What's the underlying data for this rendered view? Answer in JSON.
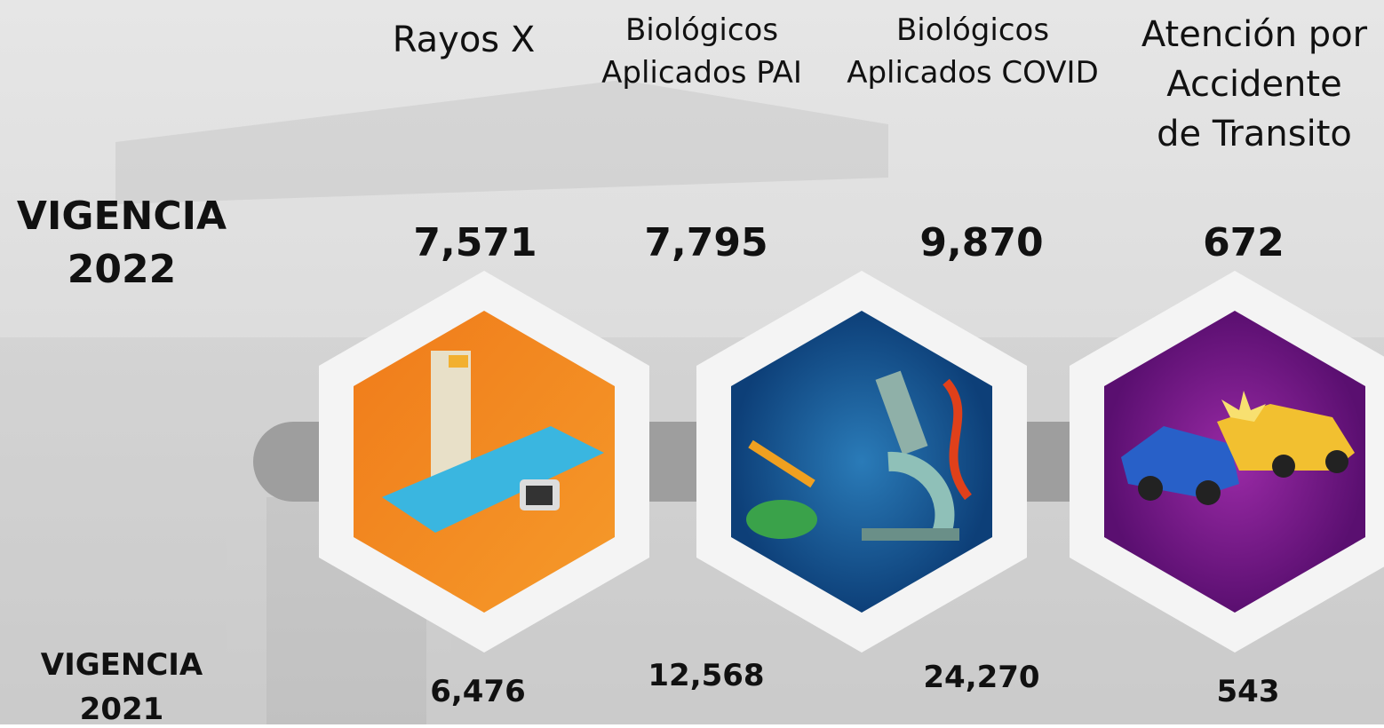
{
  "row_2022": {
    "label_lines": [
      "VIGENCIA",
      "2022"
    ],
    "values": [
      "7,571",
      "7,795",
      "9,870",
      "672"
    ]
  },
  "row_2021": {
    "label_lines": [
      "VIGENCIA",
      "2021"
    ],
    "values": [
      "6,476",
      "12,568",
      "24,270",
      "543"
    ]
  },
  "categories": [
    {
      "lines": [
        "Rayos X"
      ]
    },
    {
      "lines": [
        "Biológicos",
        "Aplicados PAI"
      ]
    },
    {
      "lines": [
        "Biológicos",
        "Aplicados COVID"
      ]
    },
    {
      "lines": [
        "Atención por",
        "Accidente",
        "de Transito"
      ]
    }
  ]
}
